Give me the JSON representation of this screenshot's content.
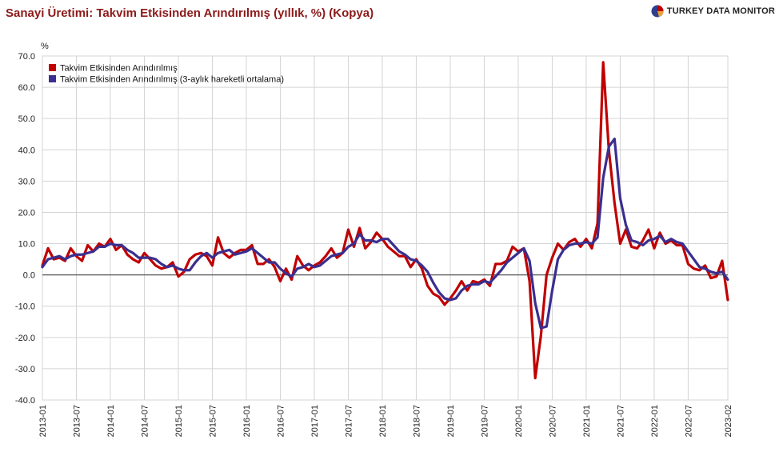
{
  "header": {
    "title": "Sanayi Üretimi: Takvim Etkisinden Arındırılmış (yıllık, %) (Kopya)",
    "brand": "TURKEY DATA MONITOR"
  },
  "colors": {
    "series1": "#c00000",
    "series2": "#3a2f8f",
    "zero_line": "#555555",
    "grid": "#d4d4d4",
    "title": "#8b1a1a"
  },
  "chart_data": {
    "type": "line",
    "ylabel": "%",
    "ylim": [
      -40,
      70
    ],
    "yticks": [
      "70.0",
      "60.0",
      "50.0",
      "40.0",
      "30.0",
      "20.0",
      "10.0",
      "0.0",
      "-10.0",
      "-20.0",
      "-30.0",
      "-40.0"
    ],
    "xlim": [
      "2013-01",
      "2023-02"
    ],
    "xticks": [
      "2013-01",
      "2013-07",
      "2014-01",
      "2014-07",
      "2015-01",
      "2015-07",
      "2016-01",
      "2016-07",
      "2017-01",
      "2017-07",
      "2018-01",
      "2018-07",
      "2019-01",
      "2019-07",
      "2020-01",
      "2020-07",
      "2021-01",
      "2021-07",
      "2022-01",
      "2022-07",
      "2023-02"
    ],
    "grid": true,
    "legend_position": "top-left",
    "series": [
      {
        "name": "Takvim Etkisinden Arındırılmış",
        "color": "#c00000",
        "points": [
          [
            "2013-01",
            3
          ],
          [
            "2013-02",
            8.5
          ],
          [
            "2013-03",
            5
          ],
          [
            "2013-04",
            5.5
          ],
          [
            "2013-05",
            4.5
          ],
          [
            "2013-06",
            8.5
          ],
          [
            "2013-07",
            6
          ],
          [
            "2013-08",
            4.5
          ],
          [
            "2013-09",
            9.5
          ],
          [
            "2013-10",
            7.5
          ],
          [
            "2013-11",
            10
          ],
          [
            "2013-12",
            9
          ],
          [
            "2014-01",
            11.5
          ],
          [
            "2014-02",
            8
          ],
          [
            "2014-03",
            9.5
          ],
          [
            "2014-04",
            6.5
          ],
          [
            "2014-05",
            5
          ],
          [
            "2014-06",
            4
          ],
          [
            "2014-07",
            7
          ],
          [
            "2014-08",
            5
          ],
          [
            "2014-09",
            3
          ],
          [
            "2014-10",
            2
          ],
          [
            "2014-11",
            2.5
          ],
          [
            "2014-12",
            4
          ],
          [
            "2015-01",
            -0.5
          ],
          [
            "2015-02",
            1
          ],
          [
            "2015-03",
            5
          ],
          [
            "2015-04",
            6.5
          ],
          [
            "2015-05",
            7
          ],
          [
            "2015-06",
            6
          ],
          [
            "2015-07",
            3
          ],
          [
            "2015-08",
            12
          ],
          [
            "2015-09",
            7
          ],
          [
            "2015-10",
            5.5
          ],
          [
            "2015-11",
            7
          ],
          [
            "2015-12",
            8
          ],
          [
            "2016-01",
            8
          ],
          [
            "2016-02",
            9.5
          ],
          [
            "2016-03",
            3.5
          ],
          [
            "2016-04",
            3.5
          ],
          [
            "2016-05",
            5
          ],
          [
            "2016-06",
            2.5
          ],
          [
            "2016-07",
            -2
          ],
          [
            "2016-08",
            2
          ],
          [
            "2016-09",
            -1.5
          ],
          [
            "2016-10",
            6
          ],
          [
            "2016-11",
            3
          ],
          [
            "2016-12",
            1.5
          ],
          [
            "2017-01",
            3
          ],
          [
            "2017-02",
            4
          ],
          [
            "2017-03",
            6
          ],
          [
            "2017-04",
            8.5
          ],
          [
            "2017-05",
            5.5
          ],
          [
            "2017-06",
            7
          ],
          [
            "2017-07",
            14.5
          ],
          [
            "2017-08",
            9
          ],
          [
            "2017-09",
            15
          ],
          [
            "2017-10",
            8.5
          ],
          [
            "2017-11",
            10.5
          ],
          [
            "2017-12",
            13.5
          ],
          [
            "2018-01",
            11.5
          ],
          [
            "2018-02",
            9
          ],
          [
            "2018-03",
            7.5
          ],
          [
            "2018-04",
            6
          ],
          [
            "2018-05",
            6
          ],
          [
            "2018-06",
            2.5
          ],
          [
            "2018-07",
            5
          ],
          [
            "2018-08",
            2
          ],
          [
            "2018-09",
            -3.5
          ],
          [
            "2018-10",
            -6
          ],
          [
            "2018-11",
            -7
          ],
          [
            "2018-12",
            -9.5
          ],
          [
            "2019-01",
            -7.5
          ],
          [
            "2019-02",
            -5
          ],
          [
            "2019-03",
            -2
          ],
          [
            "2019-04",
            -5
          ],
          [
            "2019-05",
            -2
          ],
          [
            "2019-06",
            -2.5
          ],
          [
            "2019-07",
            -1.5
          ],
          [
            "2019-08",
            -3.5
          ],
          [
            "2019-09",
            3.5
          ],
          [
            "2019-10",
            3.5
          ],
          [
            "2019-11",
            4.5
          ],
          [
            "2019-12",
            9
          ],
          [
            "2020-01",
            7.5
          ],
          [
            "2020-02",
            8.5
          ],
          [
            "2020-03",
            -2
          ],
          [
            "2020-04",
            -33
          ],
          [
            "2020-05",
            -19.5
          ],
          [
            "2020-06",
            0
          ],
          [
            "2020-07",
            5.5
          ],
          [
            "2020-08",
            10
          ],
          [
            "2020-09",
            8
          ],
          [
            "2020-10",
            10.5
          ],
          [
            "2020-11",
            11.5
          ],
          [
            "2020-12",
            9
          ],
          [
            "2021-01",
            11.5
          ],
          [
            "2021-02",
            8.5
          ],
          [
            "2021-03",
            16.5
          ],
          [
            "2021-04",
            68
          ],
          [
            "2021-05",
            40
          ],
          [
            "2021-06",
            23
          ],
          [
            "2021-07",
            10
          ],
          [
            "2021-08",
            14.5
          ],
          [
            "2021-09",
            9
          ],
          [
            "2021-10",
            8.5
          ],
          [
            "2021-11",
            11
          ],
          [
            "2021-12",
            14.5
          ],
          [
            "2022-01",
            8.5
          ],
          [
            "2022-02",
            13.5
          ],
          [
            "2022-03",
            10
          ],
          [
            "2022-04",
            11
          ],
          [
            "2022-05",
            9.5
          ],
          [
            "2022-06",
            9.5
          ],
          [
            "2022-07",
            3.5
          ],
          [
            "2022-08",
            2
          ],
          [
            "2022-09",
            1.5
          ],
          [
            "2022-10",
            3
          ],
          [
            "2022-11",
            -1
          ],
          [
            "2022-12",
            -0.5
          ],
          [
            "2023-01",
            4.5
          ],
          [
            "2023-02",
            -8
          ]
        ]
      },
      {
        "name": "Takvim Etkisinden Arındırılmış (3-aylık hareketli ortalama)",
        "color": "#3a2f8f",
        "points": [
          [
            "2013-01",
            2.5
          ],
          [
            "2013-02",
            5
          ],
          [
            "2013-03",
            5.5
          ],
          [
            "2013-04",
            6
          ],
          [
            "2013-05",
            5
          ],
          [
            "2013-06",
            6
          ],
          [
            "2013-07",
            6.5
          ],
          [
            "2013-08",
            6.5
          ],
          [
            "2013-09",
            7
          ],
          [
            "2013-10",
            7.5
          ],
          [
            "2013-11",
            9
          ],
          [
            "2013-12",
            9
          ],
          [
            "2014-01",
            10
          ],
          [
            "2014-02",
            9.5
          ],
          [
            "2014-03",
            9.5
          ],
          [
            "2014-04",
            8
          ],
          [
            "2014-05",
            7
          ],
          [
            "2014-06",
            5.5
          ],
          [
            "2014-07",
            5.5
          ],
          [
            "2014-08",
            5.5
          ],
          [
            "2014-09",
            5
          ],
          [
            "2014-10",
            3.5
          ],
          [
            "2014-11",
            2.5
          ],
          [
            "2014-12",
            3
          ],
          [
            "2015-01",
            2
          ],
          [
            "2015-02",
            1.5
          ],
          [
            "2015-03",
            1.5
          ],
          [
            "2015-04",
            4
          ],
          [
            "2015-05",
            6
          ],
          [
            "2015-06",
            7
          ],
          [
            "2015-07",
            5.5
          ],
          [
            "2015-08",
            7
          ],
          [
            "2015-09",
            7.5
          ],
          [
            "2015-10",
            8
          ],
          [
            "2015-11",
            6.5
          ],
          [
            "2015-12",
            7
          ],
          [
            "2016-01",
            7.5
          ],
          [
            "2016-02",
            8.5
          ],
          [
            "2016-03",
            7
          ],
          [
            "2016-04",
            5.5
          ],
          [
            "2016-05",
            4
          ],
          [
            "2016-06",
            4
          ],
          [
            "2016-07",
            2
          ],
          [
            "2016-08",
            0.5
          ],
          [
            "2016-09",
            -0.5
          ],
          [
            "2016-10",
            2
          ],
          [
            "2016-11",
            2.5
          ],
          [
            "2016-12",
            3.5
          ],
          [
            "2017-01",
            2.5
          ],
          [
            "2017-02",
            3
          ],
          [
            "2017-03",
            4.5
          ],
          [
            "2017-04",
            6
          ],
          [
            "2017-05",
            6.5
          ],
          [
            "2017-06",
            7
          ],
          [
            "2017-07",
            9
          ],
          [
            "2017-08",
            10
          ],
          [
            "2017-09",
            13
          ],
          [
            "2017-10",
            11
          ],
          [
            "2017-11",
            11
          ],
          [
            "2017-12",
            10.5
          ],
          [
            "2018-01",
            11.5
          ],
          [
            "2018-02",
            11.5
          ],
          [
            "2018-03",
            9.5
          ],
          [
            "2018-04",
            7.5
          ],
          [
            "2018-05",
            6.5
          ],
          [
            "2018-06",
            5
          ],
          [
            "2018-07",
            4.5
          ],
          [
            "2018-08",
            3
          ],
          [
            "2018-09",
            1
          ],
          [
            "2018-10",
            -2.5
          ],
          [
            "2018-11",
            -5.5
          ],
          [
            "2018-12",
            -7.5
          ],
          [
            "2019-01",
            -8
          ],
          [
            "2019-02",
            -7.5
          ],
          [
            "2019-03",
            -5
          ],
          [
            "2019-04",
            -3.5
          ],
          [
            "2019-05",
            -3
          ],
          [
            "2019-06",
            -3
          ],
          [
            "2019-07",
            -2
          ],
          [
            "2019-08",
            -2.5
          ],
          [
            "2019-09",
            -0.5
          ],
          [
            "2019-10",
            1.5
          ],
          [
            "2019-11",
            4
          ],
          [
            "2019-12",
            5.5
          ],
          [
            "2020-01",
            7
          ],
          [
            "2020-02",
            8.5
          ],
          [
            "2020-03",
            4.5
          ],
          [
            "2020-04",
            -9
          ],
          [
            "2020-05",
            -17
          ],
          [
            "2020-06",
            -16.5
          ],
          [
            "2020-07",
            -5
          ],
          [
            "2020-08",
            5
          ],
          [
            "2020-09",
            8
          ],
          [
            "2020-10",
            9.5
          ],
          [
            "2020-11",
            10
          ],
          [
            "2020-12",
            10
          ],
          [
            "2021-01",
            10.5
          ],
          [
            "2021-02",
            10
          ],
          [
            "2021-03",
            12
          ],
          [
            "2021-04",
            31
          ],
          [
            "2021-05",
            41
          ],
          [
            "2021-06",
            43.5
          ],
          [
            "2021-07",
            24.5
          ],
          [
            "2021-08",
            16
          ],
          [
            "2021-09",
            11
          ],
          [
            "2021-10",
            10.5
          ],
          [
            "2021-11",
            9.5
          ],
          [
            "2021-12",
            11
          ],
          [
            "2022-01",
            11.5
          ],
          [
            "2022-02",
            12.5
          ],
          [
            "2022-03",
            10.5
          ],
          [
            "2022-04",
            11.5
          ],
          [
            "2022-05",
            10.5
          ],
          [
            "2022-06",
            10
          ],
          [
            "2022-07",
            7.5
          ],
          [
            "2022-08",
            5
          ],
          [
            "2022-09",
            2.5
          ],
          [
            "2022-10",
            2
          ],
          [
            "2022-11",
            1
          ],
          [
            "2022-12",
            0.5
          ],
          [
            "2023-01",
            1
          ],
          [
            "2023-02",
            -1.5
          ]
        ]
      }
    ]
  }
}
